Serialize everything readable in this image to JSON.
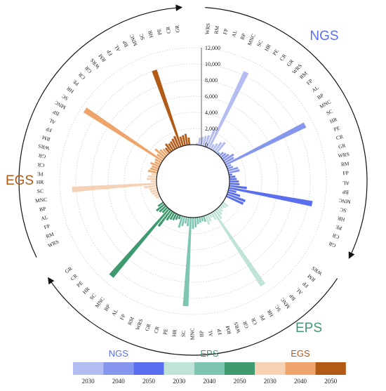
{
  "chart_data": {
    "type": "bar",
    "subtype": "circular-grouped-bar",
    "title": "",
    "radial_ticks": [
      "0",
      "2,000",
      "4,000",
      "6,000",
      "8,000",
      "10,000",
      "12,000"
    ],
    "ylim": [
      0,
      12000
    ],
    "grid": true,
    "years": [
      "2030",
      "2040",
      "2050"
    ],
    "categories": [
      "WRS",
      "RM",
      "FP",
      "AL",
      "BP",
      "MNC",
      "SC",
      "HR",
      "PE",
      "CR",
      "GR"
    ],
    "groups": [
      {
        "name": "NGS",
        "colors": [
          "#b3bdf2",
          "#8696ee",
          "#5a6ef0"
        ],
        "values": {
          "2030": [
            200,
            900,
            1100,
            1300,
            1500,
            2400,
            10500,
            700,
            1000,
            1400,
            1700
          ],
          "2040": [
            300,
            650,
            800,
            1000,
            1500,
            1300,
            11000,
            600,
            750,
            1300,
            1400
          ],
          "2050": [
            400,
            750,
            900,
            1150,
            1250,
            2200,
            10500,
            1000,
            1600,
            2400,
            2300
          ]
        }
      },
      {
        "name": "EPS",
        "colors": [
          "#bfe3d6",
          "#7ec6b3",
          "#409a70"
        ],
        "values": {
          "2030": [
            800,
            700,
            500,
            700,
            900,
            1300,
            11000,
            1000,
            500,
            900,
            1200
          ],
          "2040": [
            750,
            600,
            700,
            850,
            1200,
            1400,
            11000,
            1100,
            800,
            1200,
            1500
          ],
          "2050": [
            500,
            700,
            900,
            1000,
            1300,
            2500,
            11000,
            900,
            1100,
            1300,
            800
          ]
        }
      },
      {
        "name": "EGS",
        "colors": [
          "#f6d1b3",
          "#eea46a",
          "#b25a16"
        ],
        "values": {
          "2030": [
            500,
            600,
            800,
            900,
            1000,
            1600,
            10500,
            700,
            1200,
            1100,
            700
          ],
          "2040": [
            1200,
            1000,
            900,
            1200,
            800,
            900,
            11500,
            1000,
            1600,
            1100,
            900
          ],
          "2050": [
            800,
            1200,
            1000,
            1100,
            1300,
            1500,
            10000,
            1200,
            1300,
            1400,
            900
          ]
        }
      }
    ]
  }
}
